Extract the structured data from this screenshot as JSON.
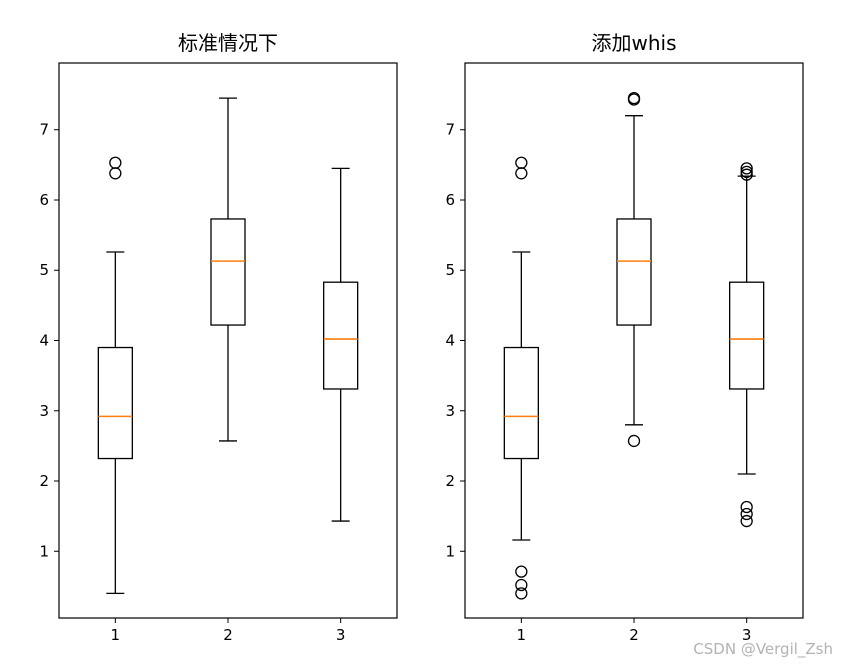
{
  "chart_data": [
    {
      "type": "box",
      "title": "标准情况下",
      "categories": [
        "1",
        "2",
        "3"
      ],
      "ylim": [
        0.05,
        7.95
      ],
      "yticks": [
        "1",
        "2",
        "3",
        "4",
        "5",
        "6",
        "7"
      ],
      "boxes": [
        {
          "name": "1",
          "whislo": 0.4,
          "q1": 2.32,
          "med": 2.92,
          "q3": 3.9,
          "whishi": 5.26,
          "fliers": [
            6.38,
            6.53
          ]
        },
        {
          "name": "2",
          "whislo": 2.57,
          "q1": 4.22,
          "med": 5.13,
          "q3": 5.73,
          "whishi": 7.45,
          "fliers": []
        },
        {
          "name": "3",
          "whislo": 1.43,
          "q1": 3.31,
          "med": 4.02,
          "q3": 4.83,
          "whishi": 6.45,
          "fliers": []
        }
      ]
    },
    {
      "type": "box",
      "title": "添加whis",
      "categories": [
        "1",
        "2",
        "3"
      ],
      "ylim": [
        0.05,
        7.95
      ],
      "yticks": [
        "1",
        "2",
        "3",
        "4",
        "5",
        "6",
        "7"
      ],
      "boxes": [
        {
          "name": "1",
          "whislo": 1.16,
          "q1": 2.32,
          "med": 2.92,
          "q3": 3.9,
          "whishi": 5.26,
          "fliers": [
            0.4,
            0.52,
            0.71,
            6.38,
            6.53
          ]
        },
        {
          "name": "2",
          "whislo": 2.8,
          "q1": 4.22,
          "med": 5.13,
          "q3": 5.73,
          "whishi": 7.2,
          "fliers": [
            2.57,
            7.43,
            7.45
          ]
        },
        {
          "name": "3",
          "whislo": 2.1,
          "q1": 3.31,
          "med": 4.02,
          "q3": 4.83,
          "whishi": 6.34,
          "fliers": [
            1.43,
            1.53,
            1.63,
            6.36,
            6.4,
            6.45
          ]
        }
      ]
    }
  ],
  "watermark": "CSDN @Vergil_Zsh"
}
